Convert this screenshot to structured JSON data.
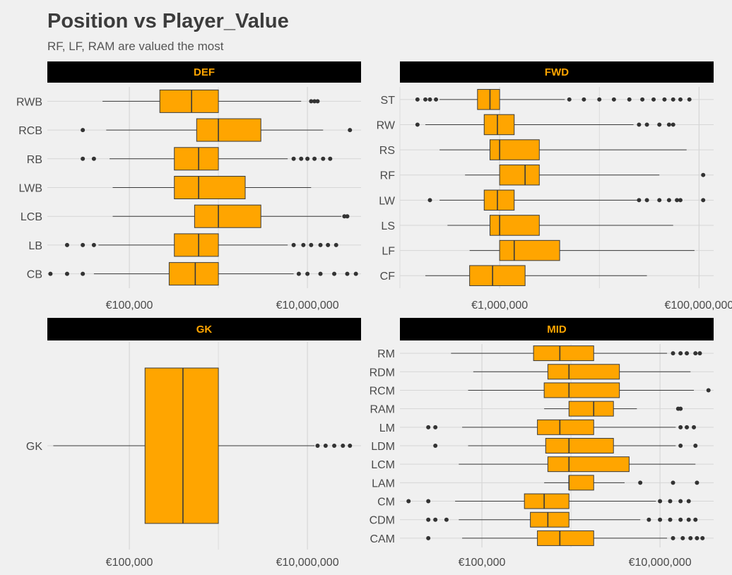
{
  "title": "Position vs Player_Value",
  "subtitle": "RF, LF, RAM are valued the most",
  "colors": {
    "background": "#f0f0f0",
    "box_fill": "#ffa500",
    "box_stroke": "#3a3a3a",
    "strip_bg": "#000000",
    "strip_text": "#ffa500",
    "grid": "#d6d6d6",
    "outlier": "#333333"
  },
  "chart_data": {
    "type": "boxplot",
    "orientation": "horizontal",
    "x_scale": "log10",
    "x_axis_label": "",
    "y_axis_label": "",
    "facets": [
      {
        "name": "DEF",
        "x_ticks": [
          {
            "value": 100000,
            "label": "€100,000"
          },
          {
            "value": 10000000,
            "label": "€10,000,000"
          }
        ],
        "xlim": [
          12000,
          40000000
        ],
        "boxes": [
          {
            "category": "RWB",
            "whisker_low": 50000,
            "q1": 220000,
            "median": 500000,
            "q3": 1000000,
            "whisker_high": 8500000,
            "outliers": [
              11000000,
              12000000,
              13000000
            ]
          },
          {
            "category": "RCB",
            "whisker_low": 55000,
            "q1": 570000,
            "median": 1000000,
            "q3": 3000000,
            "whisker_high": 15000000,
            "outliers": [
              30000,
              30000000
            ]
          },
          {
            "category": "RB",
            "whisker_low": 60000,
            "q1": 320000,
            "median": 600000,
            "q3": 1000000,
            "whisker_high": 6000000,
            "outliers": [
              30000,
              40000,
              7000000,
              8500000,
              10000000,
              12000000,
              15000000,
              18000000
            ]
          },
          {
            "category": "LWB",
            "whisker_low": 65000,
            "q1": 320000,
            "median": 600000,
            "q3": 2000000,
            "whisker_high": 11000000,
            "outliers": []
          },
          {
            "category": "LCB",
            "whisker_low": 65000,
            "q1": 540000,
            "median": 1000000,
            "q3": 3000000,
            "whisker_high": 24000000,
            "outliers": [
              26000000,
              28000000
            ]
          },
          {
            "category": "LB",
            "whisker_low": 45000,
            "q1": 320000,
            "median": 600000,
            "q3": 1000000,
            "whisker_high": 6000000,
            "outliers": [
              20000,
              30000,
              40000,
              7000000,
              9000000,
              11000000,
              14000000,
              17000000,
              21000000
            ]
          },
          {
            "category": "CB",
            "whisker_low": 40000,
            "q1": 280000,
            "median": 550000,
            "q3": 1000000,
            "whisker_high": 7000000,
            "outliers": [
              13000,
              20000,
              30000,
              8000000,
              10000000,
              14000000,
              20000000,
              28000000,
              35000000
            ]
          }
        ]
      },
      {
        "name": "FWD",
        "x_ticks": [
          {
            "value": 1000000,
            "label": "€1,000,000"
          },
          {
            "value": 100000000,
            "label": "€100,000,000"
          }
        ],
        "xlim": [
          100000,
          140000000
        ],
        "boxes": [
          {
            "category": "ST",
            "whisker_low": 250000,
            "q1": 600000,
            "median": 800000,
            "q3": 1000000,
            "whisker_high": 4500000,
            "outliers": [
              150000,
              180000,
              200000,
              230000,
              5000000,
              7000000,
              10000000,
              14000000,
              20000000,
              27000000,
              35000000,
              45000000,
              55000000,
              65000000,
              80000000
            ]
          },
          {
            "category": "RW",
            "whisker_low": 180000,
            "q1": 700000,
            "median": 950000,
            "q3": 1400000,
            "whisker_high": 22000000,
            "outliers": [
              150000,
              25000000,
              30000000,
              40000000,
              50000000,
              55000000
            ]
          },
          {
            "category": "RS",
            "whisker_low": 250000,
            "q1": 800000,
            "median": 1000000,
            "q3": 2500000,
            "whisker_high": 75000000,
            "outliers": []
          },
          {
            "category": "RF",
            "whisker_low": 450000,
            "q1": 1000000,
            "median": 1800000,
            "q3": 2500000,
            "whisker_high": 40000000,
            "outliers": [
              110000000
            ]
          },
          {
            "category": "LW",
            "whisker_low": 250000,
            "q1": 700000,
            "median": 950000,
            "q3": 1400000,
            "whisker_high": 24000000,
            "outliers": [
              200000,
              25000000,
              30000000,
              40000000,
              50000000,
              60000000,
              65000000,
              110000000
            ]
          },
          {
            "category": "LS",
            "whisker_low": 300000,
            "q1": 800000,
            "median": 1000000,
            "q3": 2500000,
            "whisker_high": 55000000,
            "outliers": []
          },
          {
            "category": "LF",
            "whisker_low": 500000,
            "q1": 1000000,
            "median": 1400000,
            "q3": 4000000,
            "whisker_high": 90000000,
            "outliers": []
          },
          {
            "category": "CF",
            "whisker_low": 180000,
            "q1": 500000,
            "median": 850000,
            "q3": 1800000,
            "whisker_high": 30000000,
            "outliers": []
          }
        ]
      },
      {
        "name": "GK",
        "x_ticks": [
          {
            "value": 100000,
            "label": "€100,000"
          },
          {
            "value": 10000000,
            "label": "€10,000,000"
          }
        ],
        "xlim": [
          12000,
          40000000
        ],
        "boxes": [
          {
            "category": "GK",
            "whisker_low": 14000,
            "q1": 150000,
            "median": 400000,
            "q3": 1000000,
            "whisker_high": 12000000,
            "outliers": [
              13000000,
              16000000,
              20000000,
              25000000,
              30000000
            ]
          }
        ]
      },
      {
        "name": "MID",
        "x_ticks": [
          {
            "value": 100000,
            "label": "€100,000"
          },
          {
            "value": 10000000,
            "label": "€10,000,000"
          }
        ],
        "xlim": [
          12000,
          40000000
        ],
        "boxes": [
          {
            "category": "RM",
            "whisker_low": 45000,
            "q1": 380000,
            "median": 750000,
            "q3": 1800000,
            "whisker_high": 12000000,
            "outliers": [
              14000000,
              17000000,
              20000000,
              25000000,
              28000000
            ]
          },
          {
            "category": "RDM",
            "whisker_low": 80000,
            "q1": 550000,
            "median": 950000,
            "q3": 3500000,
            "whisker_high": 22000000,
            "outliers": []
          },
          {
            "category": "RCM",
            "whisker_low": 70000,
            "q1": 500000,
            "median": 950000,
            "q3": 3500000,
            "whisker_high": 24000000,
            "outliers": [
              35000000
            ]
          },
          {
            "category": "RAM",
            "whisker_low": 500000,
            "q1": 950000,
            "median": 1800000,
            "q3": 3000000,
            "whisker_high": 5500000,
            "outliers": [
              16000000,
              17000000
            ]
          },
          {
            "category": "LM",
            "whisker_low": 60000,
            "q1": 420000,
            "median": 750000,
            "q3": 1800000,
            "whisker_high": 15000000,
            "outliers": [
              25000,
              30000,
              17000000,
              20000000,
              24000000
            ]
          },
          {
            "category": "LDM",
            "whisker_low": 70000,
            "q1": 520000,
            "median": 950000,
            "q3": 3000000,
            "whisker_high": 15000000,
            "outliers": [
              30000,
              17000000,
              25000000
            ]
          },
          {
            "category": "LCM",
            "whisker_low": 55000,
            "q1": 550000,
            "median": 950000,
            "q3": 4500000,
            "whisker_high": 25000000,
            "outliers": []
          },
          {
            "category": "LAM",
            "whisker_low": 500000,
            "q1": 950000,
            "median": 950000,
            "q3": 1800000,
            "whisker_high": 4000000,
            "outliers": [
              6000000,
              14000000,
              26000000
            ]
          },
          {
            "category": "CM",
            "whisker_low": 50000,
            "q1": 300000,
            "median": 500000,
            "q3": 950000,
            "whisker_high": 9000000,
            "outliers": [
              15000,
              25000,
              10000000,
              13000000,
              17000000,
              21000000
            ]
          },
          {
            "category": "CDM",
            "whisker_low": 55000,
            "q1": 350000,
            "median": 550000,
            "q3": 950000,
            "whisker_high": 6000000,
            "outliers": [
              25000,
              30000,
              40000,
              7500000,
              10000000,
              13000000,
              17000000,
              21000000,
              25000000
            ]
          },
          {
            "category": "CAM",
            "whisker_low": 60000,
            "q1": 420000,
            "median": 750000,
            "q3": 1800000,
            "whisker_high": 12000000,
            "outliers": [
              25000,
              14000000,
              18000000,
              22000000,
              26000000,
              30000000
            ]
          }
        ]
      }
    ]
  }
}
